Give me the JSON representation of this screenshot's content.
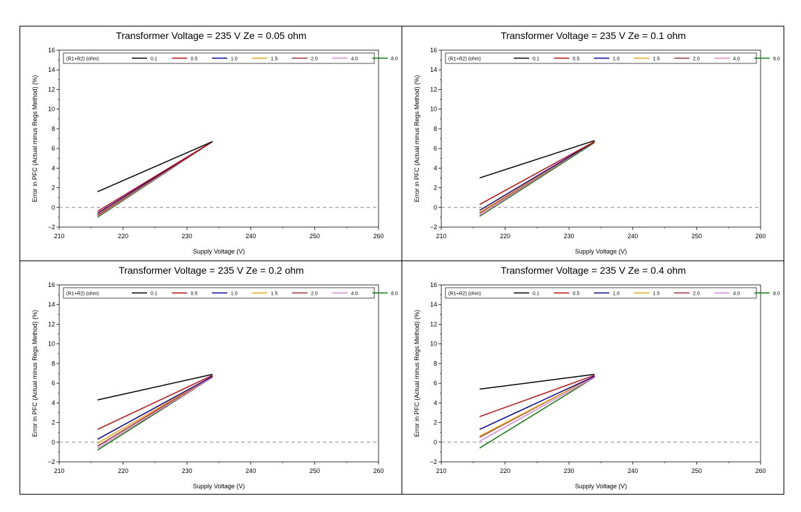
{
  "chart_data": [
    {
      "type": "line",
      "title": "Transformer Voltage  =  235  V      Ze  =  0.05  ohm",
      "xlabel": "Supply Voltage (V)",
      "ylabel": "Error in PFC (Actual minus Regs Method) (%)",
      "xlim": [
        210,
        260
      ],
      "ylim": [
        -2,
        16
      ],
      "xticks": [
        210,
        220,
        230,
        240,
        250,
        260
      ],
      "yticks": [
        -2,
        0,
        2,
        4,
        6,
        8,
        10,
        12,
        14,
        16
      ],
      "reference_line": 0,
      "legend_title": "(R1+R2) (ohm)",
      "x": [
        216,
        234
      ],
      "series": [
        {
          "name": "0.1",
          "color": "#000000",
          "values": [
            1.6,
            6.7
          ]
        },
        {
          "name": "0.5",
          "color": "#e00000",
          "values": [
            -0.4,
            6.7
          ]
        },
        {
          "name": "1.0",
          "color": "#0000c0",
          "values": [
            -0.6,
            6.7
          ]
        },
        {
          "name": "1.5",
          "color": "#f0a800",
          "values": [
            -0.7,
            6.7
          ]
        },
        {
          "name": "2.0",
          "color": "#a52a2a",
          "values": [
            -0.8,
            6.7
          ]
        },
        {
          "name": "4.0",
          "color": "#e080e0",
          "values": [
            -0.9,
            6.7
          ]
        },
        {
          "name": "8.0",
          "color": "#008000",
          "values": [
            -1.0,
            6.7
          ]
        }
      ]
    },
    {
      "type": "line",
      "title": "Transformer Voltage  =  235  V      Ze  =  0.1  ohm",
      "xlabel": "Supply Voltage (V)",
      "ylabel": "Error in PFC (Actual minus Regs Method) (%)",
      "xlim": [
        210,
        260
      ],
      "ylim": [
        -2,
        16
      ],
      "xticks": [
        210,
        220,
        230,
        240,
        250,
        260
      ],
      "yticks": [
        -2,
        0,
        2,
        4,
        6,
        8,
        10,
        12,
        14,
        16
      ],
      "reference_line": 0,
      "legend_title": "(R1+R2) (ohm)",
      "x": [
        216,
        234
      ],
      "series": [
        {
          "name": "0.1",
          "color": "#000000",
          "values": [
            3.0,
            6.8
          ]
        },
        {
          "name": "0.5",
          "color": "#e00000",
          "values": [
            0.3,
            6.7
          ]
        },
        {
          "name": "1.0",
          "color": "#0000c0",
          "values": [
            -0.3,
            6.7
          ]
        },
        {
          "name": "1.5",
          "color": "#f0a800",
          "values": [
            -0.5,
            6.7
          ]
        },
        {
          "name": "2.0",
          "color": "#a52a2a",
          "values": [
            -0.6,
            6.7
          ]
        },
        {
          "name": "4.0",
          "color": "#e080e0",
          "values": [
            -0.8,
            6.7
          ]
        },
        {
          "name": "8.0",
          "color": "#008000",
          "values": [
            -0.9,
            6.6
          ]
        }
      ]
    },
    {
      "type": "line",
      "title": "Transformer Voltage  =  235  V      Ze  =  0.2  ohm",
      "xlabel": "Supply Voltage (V)",
      "ylabel": "Error in PFC (Actual minus Regs Method) (%)",
      "xlim": [
        210,
        260
      ],
      "ylim": [
        -2,
        16
      ],
      "xticks": [
        210,
        220,
        230,
        240,
        250,
        260
      ],
      "yticks": [
        -2,
        0,
        2,
        4,
        6,
        8,
        10,
        12,
        14,
        16
      ],
      "reference_line": 0,
      "legend_title": "(R1+R2) (ohm)",
      "x": [
        216,
        234
      ],
      "series": [
        {
          "name": "0.1",
          "color": "#000000",
          "values": [
            4.3,
            6.9
          ]
        },
        {
          "name": "0.5",
          "color": "#e00000",
          "values": [
            1.3,
            6.8
          ]
        },
        {
          "name": "1.0",
          "color": "#0000c0",
          "values": [
            0.3,
            6.7
          ]
        },
        {
          "name": "1.5",
          "color": "#f0a800",
          "values": [
            -0.1,
            6.7
          ]
        },
        {
          "name": "2.0",
          "color": "#a52a2a",
          "values": [
            -0.4,
            6.7
          ]
        },
        {
          "name": "4.0",
          "color": "#e080e0",
          "values": [
            -0.6,
            6.6
          ]
        },
        {
          "name": "8.0",
          "color": "#008000",
          "values": [
            -0.8,
            6.6
          ]
        }
      ]
    },
    {
      "type": "line",
      "title": "Transformer Voltage  =  235  V      Ze  =  0.4  ohm",
      "xlabel": "Supply Voltage (V)",
      "ylabel": "Error in PFC (Actual minus Regs Method) (%)",
      "xlim": [
        210,
        260
      ],
      "ylim": [
        -2,
        16
      ],
      "xticks": [
        210,
        220,
        230,
        240,
        250,
        260
      ],
      "yticks": [
        -2,
        0,
        2,
        4,
        6,
        8,
        10,
        12,
        14,
        16
      ],
      "reference_line": 0,
      "legend_title": "(R1+R2) (ohm)",
      "x": [
        216,
        234
      ],
      "series": [
        {
          "name": "0.1",
          "color": "#000000",
          "values": [
            5.4,
            6.9
          ]
        },
        {
          "name": "0.5",
          "color": "#e00000",
          "values": [
            2.6,
            6.8
          ]
        },
        {
          "name": "1.0",
          "color": "#0000c0",
          "values": [
            1.3,
            6.7
          ]
        },
        {
          "name": "1.5",
          "color": "#f0a800",
          "values": [
            0.6,
            6.7
          ]
        },
        {
          "name": "2.0",
          "color": "#a52a2a",
          "values": [
            0.5,
            6.7
          ]
        },
        {
          "name": "4.0",
          "color": "#e080e0",
          "values": [
            0.1,
            6.6
          ]
        },
        {
          "name": "8.0",
          "color": "#008000",
          "values": [
            -0.6,
            6.6
          ]
        }
      ]
    }
  ]
}
